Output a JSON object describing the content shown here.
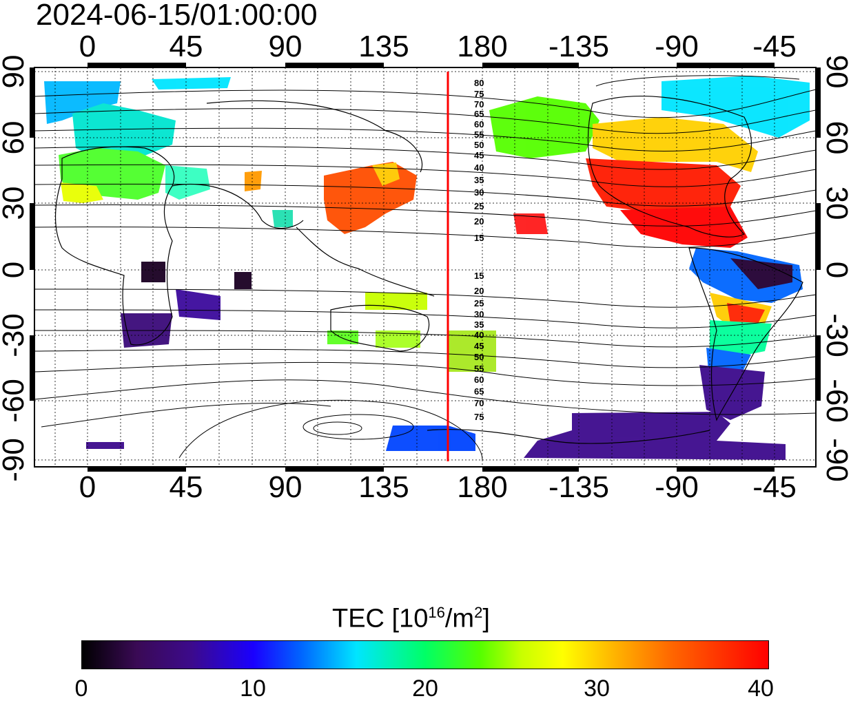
{
  "timestamp": "2024-06-15/01:00:00",
  "lon_top_labels": [
    "0",
    "45",
    "90",
    "135",
    "180",
    "-135",
    "-90",
    "-45"
  ],
  "lon_bottom_labels": [
    "0",
    "45",
    "90",
    "135",
    "180",
    "-135",
    "-90",
    "-45"
  ],
  "lat_left_labels": [
    "90",
    "60",
    "30",
    "0",
    "-30",
    "-60",
    "-90"
  ],
  "lat_right_labels": [
    "90",
    "60",
    "30",
    "0",
    "-30",
    "-60",
    "-90"
  ],
  "contour_labels_north": [
    "80",
    "75",
    "70",
    "65",
    "60",
    "55",
    "50",
    "45",
    "40",
    "35",
    "30",
    "25",
    "20",
    "15"
  ],
  "contour_labels_south": [
    "15",
    "20",
    "25",
    "30",
    "35",
    "40",
    "45",
    "50",
    "55",
    "60",
    "65",
    "70",
    "75"
  ],
  "sun_meridian_color": "#ff0000",
  "colorbar": {
    "title_prefix": "TEC  [10",
    "title_exp1": "16",
    "title_mid": "/m",
    "title_exp2": "2",
    "title_suffix": "]",
    "ticks": [
      "0",
      "10",
      "20",
      "30",
      "40"
    ],
    "min": 0,
    "max": 40
  },
  "legend_colors": [
    "#000000",
    "#3c0a8c",
    "#0066ff",
    "#00e5ff",
    "#00ff66",
    "#c8ff00",
    "#ffff00",
    "#ff6600",
    "#ff0000"
  ]
}
